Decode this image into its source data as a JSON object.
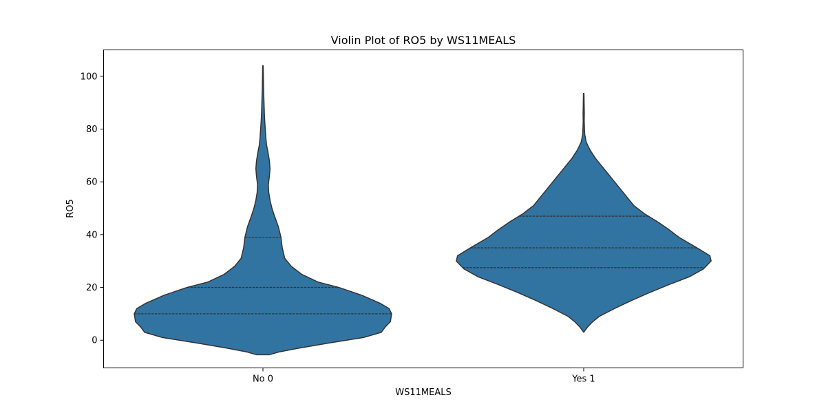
{
  "chart_data": {
    "type": "violin",
    "title": "Violin Plot of RO5 by WS11MEALS",
    "xlabel": "WS11MEALS",
    "ylabel": "RO5",
    "ylim": [
      -10.5,
      110
    ],
    "yticks": [
      0,
      20,
      40,
      60,
      80,
      100
    ],
    "categories": [
      "No 0",
      "Yes 1"
    ],
    "fill_color": "#3274a1",
    "edge_color": "#333333",
    "grid": false,
    "violins": [
      {
        "category": "No 0",
        "quartiles": {
          "q1": 10,
          "median": 20,
          "q3": 39
        },
        "profile": [
          [
            -5.5,
            0.05
          ],
          [
            -4.5,
            0.12
          ],
          [
            -3,
            0.28
          ],
          [
            -1,
            0.52
          ],
          [
            1,
            0.78
          ],
          [
            3,
            0.92
          ],
          [
            5,
            0.95
          ],
          [
            7,
            0.99
          ],
          [
            10,
            1.0
          ],
          [
            12,
            0.98
          ],
          [
            14,
            0.91
          ],
          [
            17,
            0.77
          ],
          [
            20,
            0.59
          ],
          [
            22,
            0.43
          ],
          [
            25,
            0.3
          ],
          [
            28,
            0.22
          ],
          [
            31,
            0.17
          ],
          [
            35,
            0.15
          ],
          [
            39,
            0.14
          ],
          [
            43,
            0.12
          ],
          [
            47,
            0.09
          ],
          [
            50,
            0.07
          ],
          [
            53,
            0.055
          ],
          [
            56,
            0.045
          ],
          [
            59,
            0.042
          ],
          [
            62,
            0.05
          ],
          [
            65,
            0.055
          ],
          [
            68,
            0.05
          ],
          [
            71,
            0.04
          ],
          [
            74,
            0.028
          ],
          [
            77,
            0.022
          ],
          [
            80,
            0.018
          ],
          [
            83,
            0.014
          ],
          [
            86,
            0.011
          ],
          [
            89,
            0.009
          ],
          [
            92,
            0.007
          ],
          [
            95,
            0.005
          ],
          [
            98,
            0.004
          ],
          [
            101,
            0.003
          ],
          [
            104,
            0.002
          ]
        ]
      },
      {
        "category": "Yes 1",
        "quartiles": {
          "q1": 27.5,
          "median": 35,
          "q3": 47
        },
        "profile": [
          [
            3,
            0.0
          ],
          [
            5,
            0.03
          ],
          [
            7,
            0.07
          ],
          [
            9,
            0.12
          ],
          [
            12,
            0.24
          ],
          [
            15,
            0.37
          ],
          [
            18,
            0.51
          ],
          [
            21,
            0.66
          ],
          [
            24,
            0.82
          ],
          [
            27,
            0.93
          ],
          [
            30,
            0.99
          ],
          [
            32,
            0.98
          ],
          [
            35,
            0.88
          ],
          [
            39,
            0.74
          ],
          [
            42,
            0.66
          ],
          [
            45,
            0.57
          ],
          [
            48,
            0.47
          ],
          [
            51,
            0.39
          ],
          [
            54,
            0.34
          ],
          [
            57,
            0.29
          ],
          [
            60,
            0.24
          ],
          [
            63,
            0.19
          ],
          [
            66,
            0.14
          ],
          [
            69,
            0.09
          ],
          [
            72,
            0.05
          ],
          [
            75,
            0.02
          ],
          [
            78,
            0.008
          ],
          [
            80,
            0.006
          ],
          [
            83,
            0.004
          ],
          [
            86,
            0.005
          ],
          [
            88,
            0.004
          ],
          [
            91,
            0.003
          ],
          [
            93.5,
            0.002
          ]
        ]
      }
    ]
  }
}
